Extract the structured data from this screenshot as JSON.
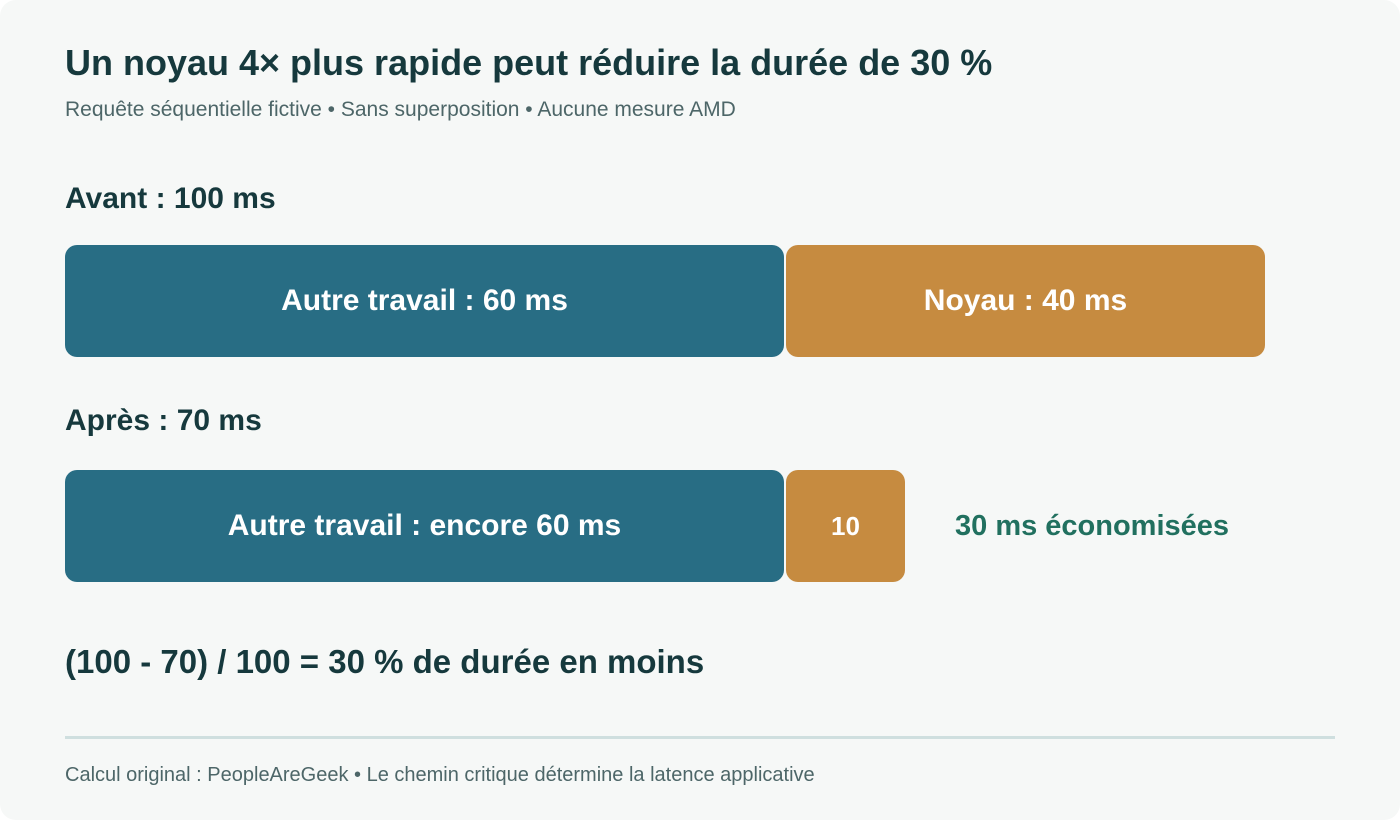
{
  "header": {
    "title": "Un noyau 4× plus rapide peut réduire la durée de 30 %",
    "subtitle": "Requête séquentielle fictive • Sans superposition • Aucune mesure AMD"
  },
  "before": {
    "label": "Avant : 100 ms",
    "total_ms": 100,
    "segments": [
      {
        "label": "Autre travail : 60 ms",
        "value_ms": 60,
        "color": "#286d84"
      },
      {
        "label": "Noyau : 40 ms",
        "value_ms": 40,
        "color": "#c68b40"
      }
    ]
  },
  "after": {
    "label": "Après : 70 ms",
    "total_ms": 70,
    "segments": [
      {
        "label": "Autre travail : encore 60 ms",
        "value_ms": 60,
        "color": "#286d84"
      },
      {
        "label": "10",
        "value_ms": 10,
        "color": "#c68b40"
      }
    ],
    "savings_label": "30 ms économisées"
  },
  "formula": "(100 - 70) / 100 = 30 % de durée en moins",
  "footer": "Calcul original : PeopleAreGeek • Le chemin critique détermine la latence applicative"
}
